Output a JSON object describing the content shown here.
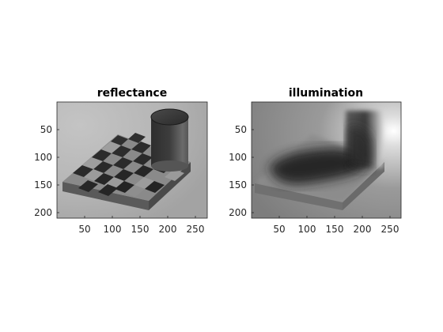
{
  "figure": {
    "panels": [
      {
        "title": "reflectance",
        "xticks": [
          "50",
          "100",
          "150",
          "200",
          "250"
        ],
        "yticks": [
          "50",
          "100",
          "150",
          "200"
        ]
      },
      {
        "title": "illumination",
        "xticks": [
          "50",
          "100",
          "150",
          "200",
          "250"
        ],
        "yticks": [
          "50",
          "100",
          "150",
          "200"
        ]
      }
    ],
    "image_extent": {
      "width": 270,
      "height": 210
    }
  }
}
